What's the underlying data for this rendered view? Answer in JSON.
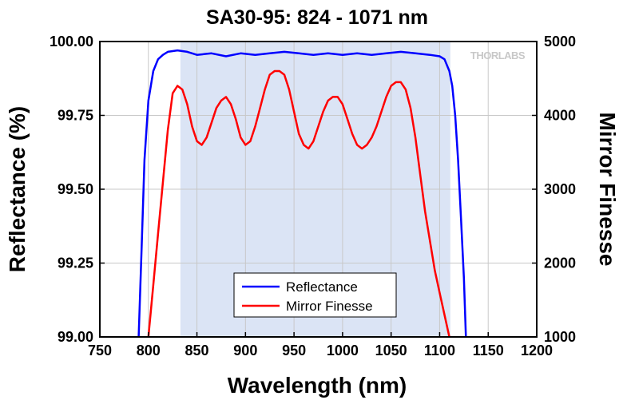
{
  "chart_data": {
    "type": "line",
    "title": "SA30-95: 824 - 1071 nm",
    "xlabel": "Wavelength (nm)",
    "ylabel": "Reflectance (%)",
    "y2label": "Mirror Finesse",
    "xlim": [
      750,
      1200
    ],
    "ylim": [
      99.0,
      100.0
    ],
    "y2lim": [
      1000,
      5000
    ],
    "xticks": [
      750,
      800,
      850,
      900,
      950,
      1000,
      1050,
      1100,
      1150,
      1200
    ],
    "yticks": [
      "99.00",
      "99.25",
      "99.50",
      "99.75",
      "100.00"
    ],
    "y2ticks": [
      "1000",
      "2000",
      "3000",
      "4000",
      "5000"
    ],
    "grid": true,
    "highlight_band": [
      833,
      1111
    ],
    "legend_position": "bottom-center",
    "logo_text": "THORLABS",
    "series": [
      {
        "name": "Reflectance",
        "axis": "left",
        "color": "#0000ff",
        "x": [
          790,
          793,
          796,
          800,
          805,
          810,
          815,
          820,
          830,
          840,
          850,
          865,
          880,
          895,
          910,
          925,
          940,
          955,
          970,
          985,
          1000,
          1015,
          1030,
          1045,
          1060,
          1075,
          1090,
          1100,
          1105,
          1110,
          1113,
          1116,
          1119,
          1122,
          1125,
          1127
        ],
        "y": [
          99.0,
          99.3,
          99.6,
          99.8,
          99.9,
          99.94,
          99.955,
          99.965,
          99.97,
          99.965,
          99.955,
          99.96,
          99.95,
          99.96,
          99.955,
          99.96,
          99.965,
          99.96,
          99.955,
          99.96,
          99.955,
          99.96,
          99.955,
          99.96,
          99.965,
          99.96,
          99.955,
          99.95,
          99.94,
          99.9,
          99.85,
          99.75,
          99.6,
          99.4,
          99.2,
          99.0
        ]
      },
      {
        "name": "Mirror Finesse",
        "axis": "right",
        "color": "#ff0000",
        "x": [
          800,
          805,
          810,
          815,
          820,
          825,
          830,
          835,
          840,
          845,
          850,
          855,
          860,
          865,
          870,
          875,
          880,
          885,
          890,
          895,
          900,
          905,
          910,
          915,
          920,
          925,
          930,
          935,
          940,
          945,
          950,
          955,
          960,
          965,
          970,
          975,
          980,
          985,
          990,
          995,
          1000,
          1005,
          1010,
          1015,
          1020,
          1025,
          1030,
          1035,
          1040,
          1045,
          1050,
          1055,
          1060,
          1065,
          1070,
          1075,
          1080,
          1085,
          1090,
          1095,
          1100,
          1105,
          1110
        ],
        "y": [
          1000,
          1700,
          2400,
          3100,
          3800,
          4300,
          4400,
          4350,
          4150,
          3850,
          3650,
          3600,
          3700,
          3900,
          4100,
          4200,
          4250,
          4150,
          3950,
          3700,
          3600,
          3650,
          3850,
          4100,
          4350,
          4550,
          4600,
          4600,
          4550,
          4350,
          4050,
          3750,
          3600,
          3550,
          3650,
          3850,
          4050,
          4200,
          4250,
          4250,
          4150,
          3950,
          3750,
          3600,
          3550,
          3600,
          3700,
          3850,
          4050,
          4250,
          4400,
          4450,
          4450,
          4350,
          4100,
          3700,
          3200,
          2700,
          2300,
          1900,
          1600,
          1300,
          1000
        ]
      }
    ]
  }
}
